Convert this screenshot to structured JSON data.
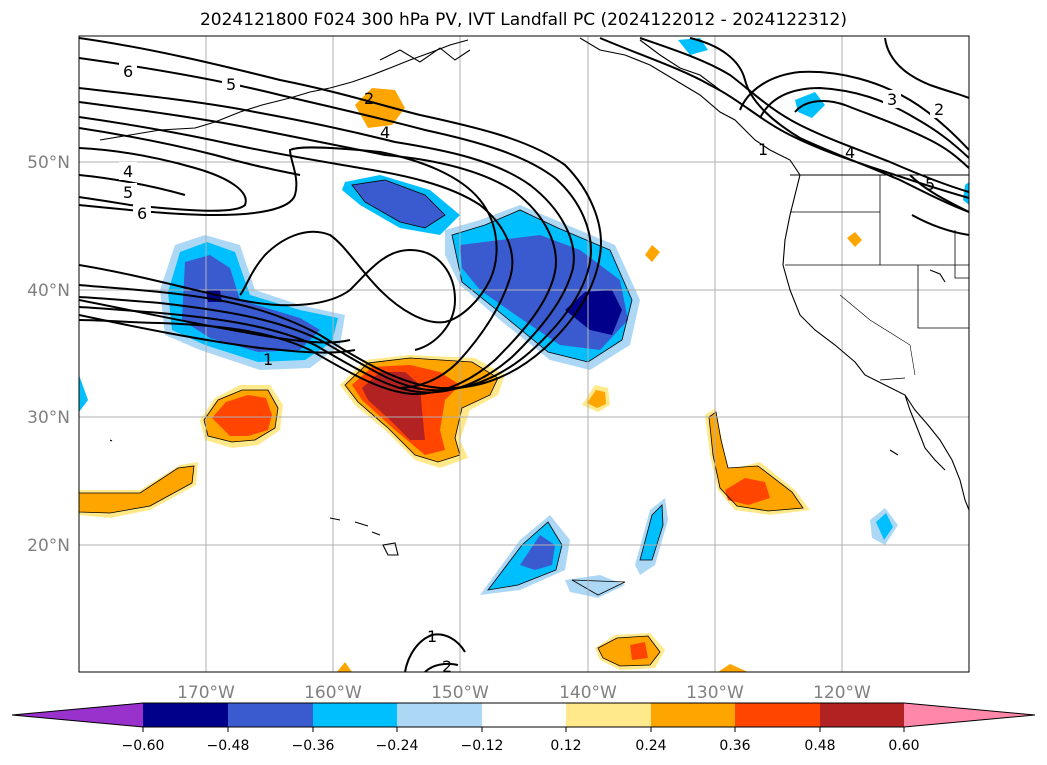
{
  "title": "2024121800 F024 300 hPa PV, IVT Landfall PC (2024122012 - 2024122312)",
  "map": {
    "lon_labels": [
      "170°W",
      "160°W",
      "150°W",
      "140°W",
      "130°W",
      "120°W"
    ],
    "lat_labels": [
      "50°N",
      "40°N",
      "30°N",
      "20°N"
    ],
    "contour_labels": [
      "6",
      "5",
      "4",
      "5",
      "6",
      "2",
      "4",
      "1",
      "3",
      "2",
      "4",
      "5",
      "1",
      "1",
      "2"
    ]
  },
  "colorbar": {
    "tick_labels": [
      "−0.60",
      "−0.48",
      "−0.36",
      "−0.24",
      "−0.12",
      "0.12",
      "0.24",
      "0.36",
      "0.48",
      "0.60"
    ],
    "colors": [
      "#9932cc",
      "#00008b",
      "#3a5bcf",
      "#00bfff",
      "#add8f5",
      "#ffffff",
      "#ffe98a",
      "#ffa500",
      "#ff4500",
      "#b22222",
      "#ff88aa"
    ]
  }
}
